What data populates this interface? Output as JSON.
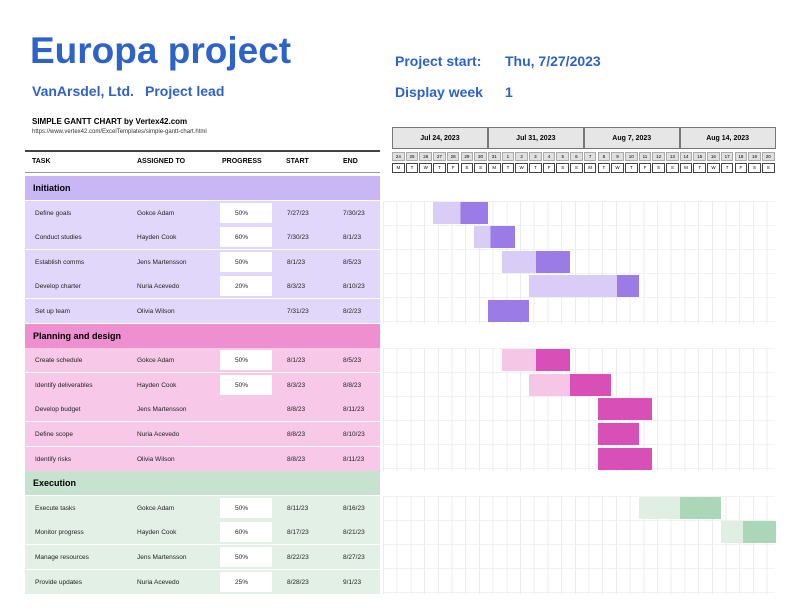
{
  "header": {
    "title": "Europa project",
    "company": "VanArsdel, Ltd.",
    "lead": "Project lead",
    "start_label": "Project start:",
    "start_value": "Thu, 7/27/2023",
    "week_label": "Display week",
    "week_value": "1"
  },
  "chart_title": "SIMPLE GANTT CHART by Vertex42.com",
  "chart_url": "https://www.vertex42.com/ExcelTemplates/simple-gantt-chart.html",
  "columns": {
    "task": "TASK",
    "assigned": "ASSIGNED TO",
    "progress": "PROGRESS",
    "start": "START",
    "end": "END"
  },
  "weeks": [
    "Jul 24, 2023",
    "Jul 31, 2023",
    "Aug 7, 2023",
    "Aug 14, 2023"
  ],
  "day_numbers": [
    "24",
    "25",
    "26",
    "27",
    "28",
    "29",
    "30",
    "31",
    "1",
    "2",
    "3",
    "4",
    "5",
    "6",
    "7",
    "8",
    "9",
    "10",
    "11",
    "12",
    "13",
    "14",
    "15",
    "16",
    "17",
    "18",
    "19",
    "20"
  ],
  "day_letters": [
    "M",
    "T",
    "W",
    "T",
    "F",
    "S",
    "S",
    "M",
    "T",
    "W",
    "T",
    "F",
    "S",
    "S",
    "M",
    "T",
    "W",
    "T",
    "F",
    "S",
    "S",
    "M",
    "T",
    "W",
    "T",
    "F",
    "S",
    "S"
  ],
  "colors": {
    "initiation_header": "#c9b7f5",
    "initiation_row": "#e1d7fb",
    "initiation_bar": "#9b7be6",
    "initiation_light": "#d9cdf7",
    "planning_header": "#ee8fd0",
    "planning_row": "#f7c8e8",
    "planning_bar": "#d94fb8",
    "planning_light": "#f5c6e6",
    "execution_header": "#c7e3cf",
    "execution_row": "#e2f0e6",
    "execution_bar": "#acd6b8",
    "execution_light": "#e0efe4"
  },
  "phases": [
    {
      "name": "Initiation",
      "key": "initiation",
      "tasks": [
        {
          "task": "Define goals",
          "assigned": "Gokce Adam",
          "progress": "50%",
          "start": "7/27/23",
          "end": "7/30/23"
        },
        {
          "task": "Conduct studies",
          "assigned": "Hayden Cook",
          "progress": "60%",
          "start": "7/30/23",
          "end": "8/1/23"
        },
        {
          "task": "Establish comms",
          "assigned": "Jens Martensson",
          "progress": "50%",
          "start": "8/1/23",
          "end": "8/5/23"
        },
        {
          "task": "Develop charter",
          "assigned": "Nuria Acevedo",
          "progress": "20%",
          "start": "8/3/23",
          "end": "8/10/23"
        },
        {
          "task": "Set up team",
          "assigned": "Olivia Wilson",
          "progress": "",
          "start": "7/31/23",
          "end": "8/2/23"
        }
      ]
    },
    {
      "name": "Planning and design",
      "key": "planning",
      "tasks": [
        {
          "task": "Create schedule",
          "assigned": "Gokce Adam",
          "progress": "50%",
          "start": "8/1/23",
          "end": "8/5/23"
        },
        {
          "task": "Identify deliverables",
          "assigned": "Hayden Cook",
          "progress": "50%",
          "start": "8/3/23",
          "end": "8/8/23"
        },
        {
          "task": "Develop budget",
          "assigned": "Jens Martensson",
          "progress": "",
          "start": "8/8/23",
          "end": "8/11/23"
        },
        {
          "task": "Define scope",
          "assigned": "Nuria Acevedo",
          "progress": "",
          "start": "8/8/23",
          "end": "8/10/23"
        },
        {
          "task": "Identify risks",
          "assigned": "Olivia Wilson",
          "progress": "",
          "start": "8/8/23",
          "end": "8/11/23"
        }
      ]
    },
    {
      "name": "Execution",
      "key": "execution",
      "tasks": [
        {
          "task": "Execute tasks",
          "assigned": "Gokce Adam",
          "progress": "50%",
          "start": "8/11/23",
          "end": "8/16/23"
        },
        {
          "task": "Monitor progress",
          "assigned": "Hayden Cook",
          "progress": "60%",
          "start": "8/17/23",
          "end": "8/21/23"
        },
        {
          "task": "Manage resources",
          "assigned": "Jens Martensson",
          "progress": "50%",
          "start": "8/22/23",
          "end": "8/27/23"
        },
        {
          "task": "Provide updates",
          "assigned": "Nuria Acevedo",
          "progress": "25%",
          "start": "8/28/23",
          "end": "9/1/23"
        }
      ]
    }
  ]
}
